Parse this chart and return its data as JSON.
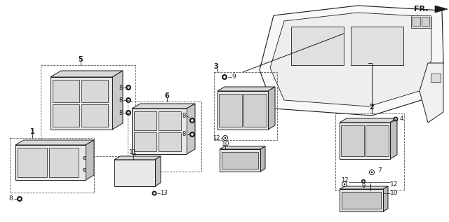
{
  "background_color": "#ffffff",
  "line_color": "#1a1a1a",
  "fig_width": 6.4,
  "fig_height": 3.17,
  "fr_label": "FR.",
  "comp_fill": "#f2f2f2",
  "comp_dark": "#d8d8d8",
  "comp_mid": "#e8e8e8"
}
